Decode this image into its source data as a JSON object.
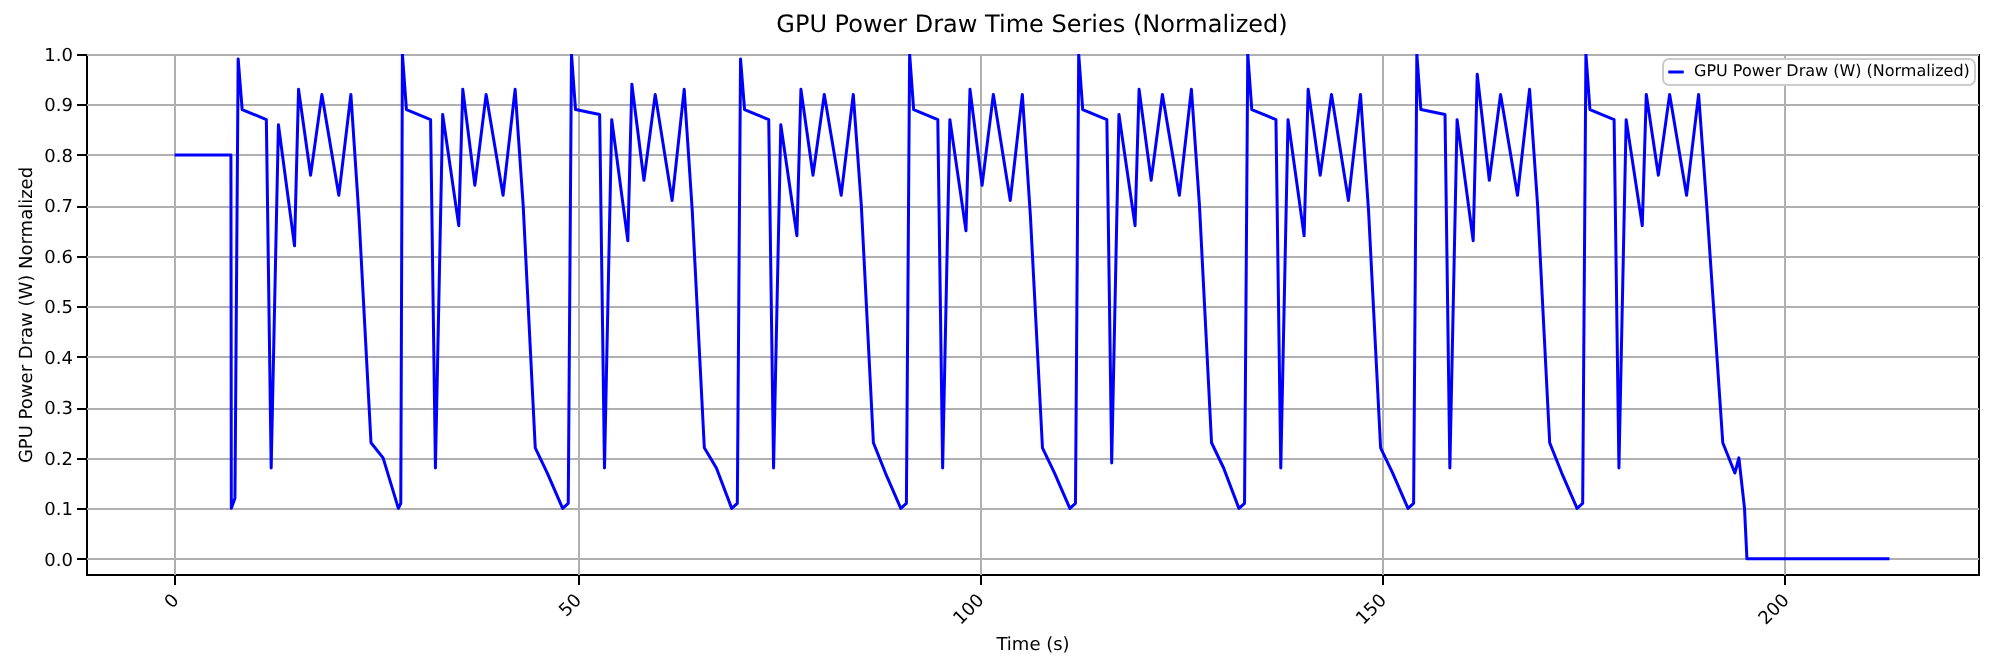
{
  "chart_data": {
    "type": "line",
    "title": "GPU Power Draw Time Series (Normalized)",
    "xlabel": "Time (s)",
    "ylabel": "GPU Power Draw (W) Normalized",
    "x": [
      0,
      7,
      7.05,
      7.5,
      7.9,
      8.4,
      11.4,
      12,
      12.9,
      14.9,
      15.4,
      16.9,
      18.3,
      20.4,
      21.9,
      22.9,
      24.4,
      25.9,
      27.8,
      28.1,
      28.3,
      28.8,
      31.8,
      32.4,
      33.3,
      35.3,
      35.8,
      37.3,
      38.7,
      40.8,
      42.3,
      43.3,
      44.8,
      46.3,
      48.2,
      48.9,
      49.3,
      49.8,
      52.8,
      53.4,
      54.3,
      56.3,
      56.8,
      58.3,
      59.7,
      61.8,
      63.3,
      64.3,
      65.8,
      67.3,
      69.2,
      69.9,
      70.3,
      70.8,
      73.8,
      74.4,
      75.3,
      77.3,
      77.8,
      79.3,
      80.7,
      82.8,
      84.3,
      85.3,
      86.8,
      88.3,
      90.2,
      90.9,
      91.3,
      91.8,
      94.8,
      95.4,
      96.3,
      98.3,
      98.8,
      100.3,
      101.7,
      103.8,
      105.3,
      106.3,
      107.8,
      109.3,
      111.2,
      111.9,
      112.3,
      112.8,
      115.8,
      116.4,
      117.3,
      119.3,
      119.8,
      121.3,
      122.7,
      124.8,
      126.3,
      127.3,
      128.8,
      130.3,
      132.2,
      132.9,
      133.3,
      133.8,
      136.8,
      137.4,
      138.3,
      140.3,
      140.8,
      142.3,
      143.7,
      145.8,
      147.3,
      148.3,
      149.8,
      151.3,
      153.2,
      153.9,
      154.3,
      154.8,
      157.8,
      158.4,
      159.3,
      161.3,
      161.8,
      163.3,
      164.7,
      166.8,
      168.3,
      169.3,
      170.8,
      172.3,
      174.2,
      174.9,
      175.3,
      175.8,
      178.8,
      179.4,
      180.3,
      182.3,
      182.8,
      184.3,
      185.7,
      187.8,
      189.3,
      190.3,
      192.3,
      193.8,
      194.3,
      195,
      195.3,
      213
    ],
    "series": [
      {
        "name": "GPU Power Draw (W) (Normalized)",
        "color": "#0000ff",
        "values": [
          0.8,
          0.8,
          0.1,
          0.12,
          0.99,
          0.89,
          0.87,
          0.18,
          0.86,
          0.62,
          0.93,
          0.76,
          0.92,
          0.72,
          0.92,
          0.68,
          0.23,
          0.2,
          0.1,
          0.11,
          1.0,
          0.89,
          0.87,
          0.18,
          0.88,
          0.66,
          0.93,
          0.74,
          0.92,
          0.72,
          0.93,
          0.7,
          0.22,
          0.17,
          0.1,
          0.11,
          1.0,
          0.89,
          0.88,
          0.18,
          0.87,
          0.63,
          0.94,
          0.75,
          0.92,
          0.71,
          0.93,
          0.69,
          0.22,
          0.18,
          0.1,
          0.11,
          0.99,
          0.89,
          0.87,
          0.18,
          0.86,
          0.64,
          0.93,
          0.76,
          0.92,
          0.72,
          0.92,
          0.7,
          0.23,
          0.17,
          0.1,
          0.11,
          1.0,
          0.89,
          0.87,
          0.18,
          0.87,
          0.65,
          0.93,
          0.74,
          0.92,
          0.71,
          0.92,
          0.68,
          0.22,
          0.17,
          0.1,
          0.11,
          1.0,
          0.89,
          0.87,
          0.19,
          0.88,
          0.66,
          0.93,
          0.75,
          0.92,
          0.72,
          0.93,
          0.7,
          0.23,
          0.18,
          0.1,
          0.11,
          1.0,
          0.89,
          0.87,
          0.18,
          0.87,
          0.64,
          0.93,
          0.76,
          0.92,
          0.71,
          0.92,
          0.69,
          0.22,
          0.17,
          0.1,
          0.11,
          1.0,
          0.89,
          0.88,
          0.18,
          0.87,
          0.63,
          0.96,
          0.75,
          0.92,
          0.72,
          0.93,
          0.7,
          0.23,
          0.17,
          0.1,
          0.11,
          1.0,
          0.89,
          0.87,
          0.18,
          0.87,
          0.66,
          0.92,
          0.76,
          0.92,
          0.72,
          0.92,
          0.7,
          0.23,
          0.17,
          0.2,
          0.1,
          0,
          0
        ]
      }
    ],
    "xlim": [
      -11,
      224
    ],
    "xticks": [
      0,
      50,
      100,
      150,
      200
    ],
    "ylim": [
      -0.03,
      1.0
    ],
    "yticks": [
      {
        "value": 0,
        "label": "0.0"
      },
      {
        "value": 0.1,
        "label": "0.1"
      },
      {
        "value": 0.2,
        "label": "0.2"
      },
      {
        "value": 0.3,
        "label": "0.3"
      },
      {
        "value": 0.4,
        "label": "0.4"
      },
      {
        "value": 0.5,
        "label": "0.5"
      },
      {
        "value": 0.6,
        "label": "0.6"
      },
      {
        "value": 0.7,
        "label": "0.7"
      },
      {
        "value": 0.8,
        "label": "0.8"
      },
      {
        "value": 0.9,
        "label": "0.9"
      },
      {
        "value": 1,
        "label": "1.0"
      }
    ],
    "grid": true,
    "legend": "top right",
    "line_style": "solid"
  }
}
